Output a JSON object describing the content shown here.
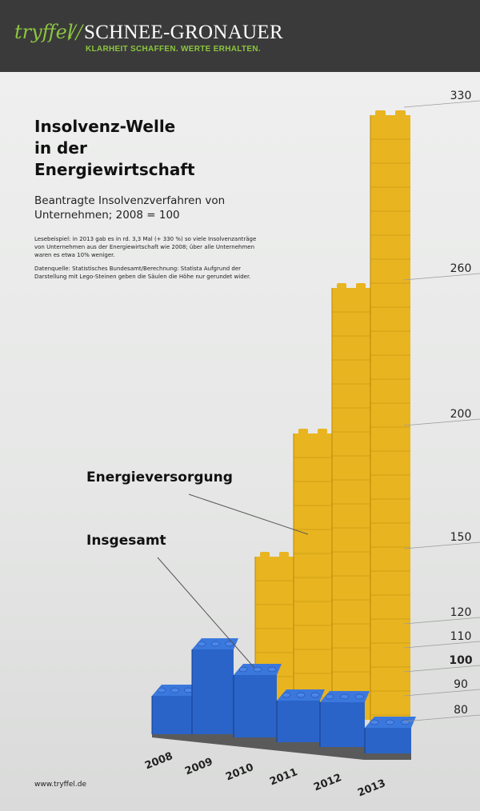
{
  "brand": {
    "logo_text": "tryffel",
    "slash": "//",
    "company": "SCHNEE-GRONAUER",
    "tagline": "KLARHEIT SCHAFFEN. WERTE ERHALTEN."
  },
  "header": {
    "title_lines": [
      "Insolvenz-Welle",
      "in der",
      "Energiewirtschaft"
    ],
    "subtitle": "Beantragte Insolvenzverfahren von Unternehmen; 2008 = 100",
    "note_reading": "Lesebeispiel: in 2013 gab es in rd. 3,3 Mal (+ 330 %) so viele Insolvenzanträge von Unternehmen aus der Energiewirtschaft wie 2008; über alle Unternehmen waren es etwa 10% weniger.",
    "note_source": "Datenquelle: Statistisches Bundesamt/Berechnung: Statista Aufgrund der Darstellung mit Lego-Steinen geben die Säulen die Höhe nur gerundet wider."
  },
  "footer": {
    "url": "www.tryffel.de"
  },
  "colors": {
    "yellow": "#e8b420",
    "yellow_dark": "#b8860b",
    "blue": "#2a64c8",
    "blue_dark": "#173d8a",
    "base_plate": "#5a5a5a"
  },
  "chart_data": {
    "type": "bar",
    "categories": [
      "2008",
      "2009",
      "2010",
      "2011",
      "2012",
      "2013"
    ],
    "series": [
      {
        "name": "Energieversorgung",
        "values": [
          null,
          null,
          150,
          200,
          260,
          330
        ]
      },
      {
        "name": "Insgesamt",
        "values": [
          100,
          120,
          110,
          100,
          100,
          90
        ]
      }
    ],
    "y_ticks": [
      "330",
      "260",
      "200",
      "150",
      "120",
      "110",
      "100",
      "90",
      "80"
    ],
    "y_tick_values": [
      330,
      260,
      200,
      150,
      120,
      110,
      100,
      90,
      80
    ],
    "reference_tick": "100",
    "ylim": [
      80,
      330
    ],
    "labels": {
      "energie": "Energieversorgung",
      "insgesamt": "Insgesamt"
    },
    "grid": false,
    "legend": "inline annotations"
  }
}
